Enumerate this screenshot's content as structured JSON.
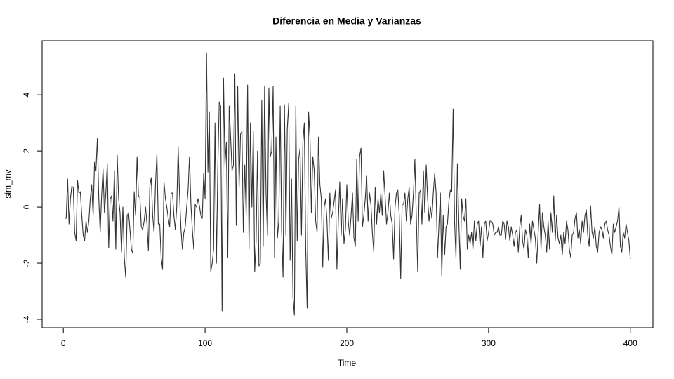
{
  "chart_data": {
    "type": "line",
    "title": "Diferencia en Media y Varianzas",
    "x_label": "Time",
    "y_label": "sim_mv",
    "color": "#333333",
    "x": [
      1,
      2,
      3,
      4,
      5,
      6,
      7,
      8,
      9,
      10,
      11,
      12,
      13,
      14,
      15,
      16,
      17,
      18,
      19,
      20,
      21,
      22,
      23,
      24,
      25,
      26,
      27,
      28,
      29,
      30,
      31,
      32,
      33,
      34,
      35,
      36,
      37,
      38,
      39,
      40,
      41,
      42,
      43,
      44,
      45,
      46,
      47,
      48,
      49,
      50,
      51,
      52,
      53,
      54,
      55,
      56,
      57,
      58,
      59,
      60,
      61,
      62,
      63,
      64,
      65,
      66,
      67,
      68,
      69,
      70,
      71,
      72,
      73,
      74,
      75,
      76,
      77,
      78,
      79,
      80,
      81,
      82,
      83,
      84,
      85,
      86,
      87,
      88,
      89,
      90,
      91,
      92,
      93,
      94,
      95,
      96,
      97,
      98,
      99,
      100,
      101,
      102,
      103,
      104,
      105,
      106,
      107,
      108,
      109,
      110,
      111,
      112,
      113,
      114,
      115,
      116,
      117,
      118,
      119,
      120,
      121,
      122,
      123,
      124,
      125,
      126,
      127,
      128,
      129,
      130,
      131,
      132,
      133,
      134,
      135,
      136,
      137,
      138,
      139,
      140,
      141,
      142,
      143,
      144,
      145,
      146,
      147,
      148,
      149,
      150,
      151,
      152,
      153,
      154,
      155,
      156,
      157,
      158,
      159,
      160,
      161,
      162,
      163,
      164,
      165,
      166,
      167,
      168,
      169,
      170,
      171,
      172,
      173,
      174,
      175,
      176,
      177,
      178,
      179,
      180,
      181,
      182,
      183,
      184,
      185,
      186,
      187,
      188,
      189,
      190,
      191,
      192,
      193,
      194,
      195,
      196,
      197,
      198,
      199,
      200,
      201,
      202,
      203,
      204,
      205,
      206,
      207,
      208,
      209,
      210,
      211,
      212,
      213,
      214,
      215,
      216,
      217,
      218,
      219,
      220,
      221,
      222,
      223,
      224,
      225,
      226,
      227,
      228,
      229,
      230,
      231,
      232,
      233,
      234,
      235,
      236,
      237,
      238,
      239,
      240,
      241,
      242,
      243,
      244,
      245,
      246,
      247,
      248,
      249,
      250,
      251,
      252,
      253,
      254,
      255,
      256,
      257,
      258,
      259,
      260,
      261,
      262,
      263,
      264,
      265,
      266,
      267,
      268,
      269,
      270,
      271,
      272,
      273,
      274,
      275,
      276,
      277,
      278,
      279,
      280,
      281,
      282,
      283,
      284,
      285,
      286,
      287,
      288,
      289,
      290,
      291,
      292,
      293,
      294,
      295,
      296,
      297,
      298,
      299,
      300,
      301,
      302,
      303,
      304,
      305,
      306,
      307,
      308,
      309,
      310,
      311,
      312,
      313,
      314,
      315,
      316,
      317,
      318,
      319,
      320,
      321,
      322,
      323,
      324,
      325,
      326,
      327,
      328,
      329,
      330,
      331,
      332,
      333,
      334,
      335,
      336,
      337,
      338,
      339,
      340,
      341,
      342,
      343,
      344,
      345,
      346,
      347,
      348,
      349,
      350,
      351,
      352,
      353,
      354,
      355,
      356,
      357,
      358,
      359,
      360,
      361,
      362,
      363,
      364,
      365,
      366,
      367,
      368,
      369,
      370,
      371,
      372,
      373,
      374,
      375,
      376,
      377,
      378,
      379,
      380,
      381,
      382,
      383,
      384,
      385,
      386,
      387,
      388,
      389,
      390,
      391,
      392,
      393,
      394,
      395,
      396,
      397,
      398,
      399,
      400
    ],
    "values": [
      -0.4,
      -0.4,
      1.0,
      -0.6,
      0.3,
      0.75,
      0.7,
      -0.9,
      -1.2,
      0.95,
      0.5,
      0.55,
      -0.3,
      -1.0,
      -1.2,
      -0.5,
      -0.9,
      -0.5,
      0.3,
      0.8,
      -0.3,
      1.6,
      1.3,
      2.45,
      0.3,
      -0.9,
      0.4,
      1.35,
      -0.2,
      0.5,
      1.55,
      -1.45,
      0.3,
      0.4,
      -0.5,
      1.3,
      -1.5,
      1.85,
      0.3,
      -0.2,
      -1.6,
      0.0,
      -1.8,
      -2.5,
      -0.3,
      -0.2,
      -0.8,
      -1.5,
      -1.65,
      0.55,
      -0.3,
      1.8,
      0.4,
      0.35,
      -0.7,
      -0.8,
      -0.5,
      0.0,
      -0.6,
      -1.55,
      0.75,
      1.05,
      -0.3,
      -0.9,
      0.8,
      1.9,
      -0.6,
      -0.6,
      -1.8,
      -2.2,
      0.9,
      0.3,
      0.0,
      -0.4,
      -0.7,
      0.5,
      0.5,
      -0.3,
      -0.8,
      0.0,
      2.15,
      0.4,
      -0.8,
      -1.5,
      -0.9,
      -0.7,
      0.0,
      0.6,
      1.8,
      0.1,
      -0.8,
      -1.5,
      0.1,
      0.0,
      0.3,
      0.05,
      -0.3,
      -0.4,
      1.2,
      0.3,
      5.5,
      1.25,
      3.4,
      -2.3,
      -2.0,
      -1.5,
      3.0,
      -2.0,
      1.5,
      3.75,
      3.6,
      -3.7,
      4.6,
      1.5,
      2.3,
      -1.8,
      3.6,
      2.5,
      1.3,
      1.5,
      4.75,
      -0.65,
      4.3,
      0.7,
      2.6,
      2.7,
      -0.9,
      1.5,
      -0.3,
      4.35,
      -1.5,
      3.0,
      0.0,
      2.7,
      -2.3,
      -1.2,
      2.0,
      -2.1,
      -2.0,
      3.8,
      -1.4,
      4.3,
      0.5,
      -1.0,
      4.25,
      1.8,
      2.0,
      4.3,
      -1.8,
      2.5,
      -1.1,
      -0.5,
      3.6,
      -0.8,
      -2.5,
      3.65,
      -1.0,
      2.8,
      3.7,
      -1.9,
      1.0,
      -3.2,
      -3.85,
      3.6,
      -1.2,
      1.7,
      2.1,
      -1.0,
      2.3,
      3.0,
      -1.5,
      -3.6,
      3.4,
      2.5,
      -0.2,
      1.8,
      1.3,
      -0.5,
      -0.9,
      2.5,
      0.8,
      0.3,
      -2.15,
      0.0,
      0.3,
      -0.5,
      -1.9,
      0.5,
      -0.4,
      -0.2,
      0.2,
      0.6,
      -2.2,
      -0.5,
      0.9,
      -1.0,
      0.3,
      -1.3,
      -0.8,
      0.8,
      -0.5,
      -1.0,
      -0.3,
      0.5,
      -1.1,
      -1.4,
      1.7,
      -0.5,
      1.8,
      2.1,
      -0.7,
      -0.3,
      0.3,
      1.1,
      -0.5,
      0.5,
      0.1,
      -0.9,
      -1.6,
      0.7,
      -0.6,
      0.3,
      -0.2,
      0.5,
      -0.3,
      1.3,
      0.4,
      -0.6,
      -0.2,
      0.5,
      -0.3,
      -0.6,
      -1.85,
      0.0,
      0.5,
      0.6,
      -0.3,
      -2.55,
      0.1,
      0.1,
      0.5,
      -0.5,
      0.3,
      0.7,
      -0.6,
      -0.3,
      0.5,
      1.7,
      -0.3,
      -2.3,
      0.5,
      0.6,
      -0.6,
      1.3,
      -0.2,
      1.5,
      0.3,
      -0.5,
      0.0,
      -0.4,
      0.5,
      1.2,
      0.5,
      -1.8,
      -0.6,
      0.5,
      -2.45,
      -0.3,
      -1.7,
      -0.7,
      -0.6,
      0.2,
      0.6,
      0.55,
      3.5,
      -0.5,
      -1.8,
      1.55,
      -0.5,
      -2.2,
      0.3,
      -0.3,
      -0.5,
      0.3,
      -1.5,
      -1.0,
      -1.3,
      -0.9,
      -1.5,
      -0.5,
      -1.2,
      -0.6,
      -0.5,
      -1.4,
      -0.7,
      -1.8,
      -0.6,
      -0.5,
      -1.2,
      -0.9,
      -0.5,
      -0.5,
      -0.6,
      -1.0,
      -0.9,
      -0.9,
      -0.7,
      -1.0,
      -1.0,
      -0.5,
      -0.6,
      -1.15,
      -0.5,
      -0.7,
      -1.2,
      -0.7,
      -1.0,
      -1.4,
      -0.9,
      -0.8,
      -1.6,
      -0.7,
      -0.3,
      -1.2,
      -1.5,
      -0.8,
      -1.0,
      -1.8,
      -0.6,
      -1.3,
      -0.5,
      -0.8,
      -1.1,
      -2.0,
      -0.9,
      0.1,
      -1.5,
      -0.2,
      -0.7,
      -1.0,
      -1.6,
      -0.5,
      -1.5,
      -0.2,
      -0.9,
      0.4,
      -1.2,
      -0.3,
      -1.1,
      -1.3,
      -1.0,
      -1.7,
      -0.9,
      -1.3,
      -0.5,
      -0.8,
      -1.5,
      -1.8,
      -1.0,
      -0.9,
      -0.4,
      -0.2,
      -1.1,
      -0.8,
      -1.3,
      -0.5,
      -0.9,
      -0.3,
      -0.1,
      -1.0,
      -1.4,
      0.05,
      -0.9,
      -1.1,
      -0.7,
      -1.4,
      -1.6,
      -0.9,
      -0.7,
      -0.8,
      -1.1,
      -0.6,
      -0.5,
      -0.8,
      -1.0,
      -1.4,
      -1.7,
      -0.6,
      -0.9,
      -0.7,
      -0.5,
      0.0,
      -1.4,
      -1.6,
      -0.9,
      -1.1,
      -0.6,
      -0.9,
      -1.2,
      -1.85
    ],
    "xlim": [
      -14.96,
      415.96
    ],
    "xticks": [
      0,
      100,
      200,
      300,
      400
    ],
    "ylim": [
      -4.3,
      5.93
    ],
    "yticks": [
      -4,
      -2,
      0,
      2,
      4
    ]
  }
}
